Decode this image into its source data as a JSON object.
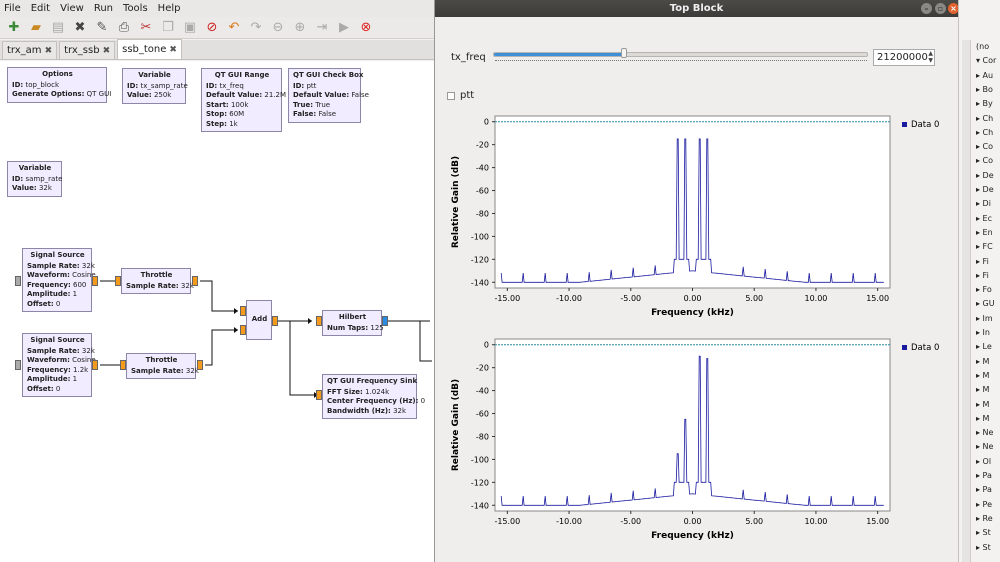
{
  "menu": [
    "File",
    "Edit",
    "View",
    "Run",
    "Tools",
    "Help"
  ],
  "toolbar_icons": [
    "new-icon",
    "open-icon",
    "save-icon",
    "close-icon",
    "edit-icon",
    "print-icon",
    "cut-icon",
    "copy-icon",
    "paste-icon",
    "delete-icon",
    "undo-icon",
    "redo-icon",
    "disable-icon",
    "enable-icon",
    "bypass-icon",
    "run-icon",
    "stop-icon"
  ],
  "tabs": [
    {
      "label": "trx_am"
    },
    {
      "label": "trx_ssb"
    },
    {
      "label": "ssb_tone"
    }
  ],
  "blocks": {
    "options": {
      "title": "Options",
      "l1k": "ID:",
      "l1v": "top_block",
      "l2k": "Generate Options:",
      "l2v": "QT GUI"
    },
    "var_samp_rate_tx": {
      "title": "Variable",
      "l1k": "ID:",
      "l1v": "tx_samp_rate",
      "l2k": "Value:",
      "l2v": "250k"
    },
    "range": {
      "title": "QT GUI Range",
      "l1k": "ID:",
      "l1v": "tx_freq",
      "l2k": "Default Value:",
      "l2v": "21.2M",
      "l3k": "Start:",
      "l3v": "100k",
      "l4k": "Stop:",
      "l4v": "60M",
      "l5k": "Step:",
      "l5v": "1k"
    },
    "checkbox": {
      "title": "QT GUI Check Box",
      "l1k": "ID:",
      "l1v": "ptt",
      "l2k": "Default Value:",
      "l2v": "False",
      "l3k": "True:",
      "l3v": "True",
      "l4k": "False:",
      "l4v": "False"
    },
    "var_samp_rate": {
      "title": "Variable",
      "l1k": "ID:",
      "l1v": "samp_rate",
      "l2k": "Value:",
      "l2v": "32k"
    },
    "src1": {
      "title": "Signal Source",
      "l1k": "Sample Rate:",
      "l1v": "32k",
      "l2k": "Waveform:",
      "l2v": "Cosine",
      "l3k": "Frequency:",
      "l3v": "600",
      "l4k": "Amplitude:",
      "l4v": "1",
      "l5k": "Offset:",
      "l5v": "0"
    },
    "src2": {
      "title": "Signal Source",
      "l1k": "Sample Rate:",
      "l1v": "32k",
      "l2k": "Waveform:",
      "l2v": "Cosine",
      "l3k": "Frequency:",
      "l3v": "1.2k",
      "l4k": "Amplitude:",
      "l4v": "1",
      "l5k": "Offset:",
      "l5v": "0"
    },
    "throttle1": {
      "title": "Throttle",
      "l1k": "Sample Rate:",
      "l1v": "32k"
    },
    "throttle2": {
      "title": "Throttle",
      "l1k": "Sample Rate:",
      "l1v": "32k"
    },
    "add": {
      "title": "Add"
    },
    "hilbert": {
      "title": "Hilbert",
      "l1k": "Num Taps:",
      "l1v": "125"
    },
    "freqsink": {
      "title": "QT GUI Frequency Sink",
      "l1k": "FFT Size:",
      "l1v": "1.024k",
      "l2k": "Center Frequency (Hz):",
      "l2v": "0",
      "l3k": "Bandwidth (Hz):",
      "l3v": "32k"
    }
  },
  "window": {
    "title": "Top Block",
    "slider_label": "tx_freq",
    "slider_value": "21200000",
    "slider_level": 0.35,
    "ptt_label": "ptt"
  },
  "chart_data": [
    {
      "type": "line",
      "xlabel": "Frequency (kHz)",
      "ylabel": "Relative Gain (dB)",
      "xlim": [
        -16,
        16
      ],
      "ylim": [
        -145,
        5
      ],
      "xticks": [
        "-15.00",
        "-10.00",
        "-5.00",
        "0.00",
        "5.00",
        "10.00",
        "15.00"
      ],
      "yticks": [
        "0",
        "-20",
        "-40",
        "-60",
        "-80",
        "-100",
        "-120",
        "-140"
      ],
      "series": [
        {
          "name": "Data 0",
          "color": "#1a1aa0",
          "peaks_khz": [
            -1.2,
            -0.6,
            0.6,
            1.2
          ],
          "peak_db": -15,
          "floor_db": -140,
          "ref_line_db": 0
        }
      ]
    },
    {
      "type": "line",
      "xlabel": "Frequency (kHz)",
      "ylabel": "Relative Gain (dB)",
      "xlim": [
        -16,
        16
      ],
      "ylim": [
        -145,
        5
      ],
      "xticks": [
        "-15.00",
        "-10.00",
        "-5.00",
        "0.00",
        "5.00",
        "10.00",
        "15.00"
      ],
      "yticks": [
        "0",
        "-20",
        "-40",
        "-60",
        "-80",
        "-100",
        "-120",
        "-140"
      ],
      "series": [
        {
          "name": "Data 0",
          "color": "#1a1aa0",
          "peaks_khz": [
            -1.2,
            -0.6,
            0.6,
            1.2
          ],
          "peak_db": [
            -95,
            -65,
            -10,
            -12
          ],
          "floor_db": -140,
          "ref_line_db": 0
        }
      ]
    }
  ],
  "right_panel": [
    "(no",
    "Cor",
    "Au",
    "Bo",
    "By",
    "Ch",
    "Ch",
    "Co",
    "Co",
    "De",
    "De",
    "Di",
    "Ec",
    "En",
    "FC",
    "Fi",
    "Fi",
    "Fo",
    "GU",
    "Im",
    "In",
    "Le",
    "M",
    "M",
    "M",
    "M",
    "M",
    "Ne",
    "Ne",
    "Ol",
    "Pa",
    "Pa",
    "Pe",
    "Re",
    "St",
    "St"
  ]
}
